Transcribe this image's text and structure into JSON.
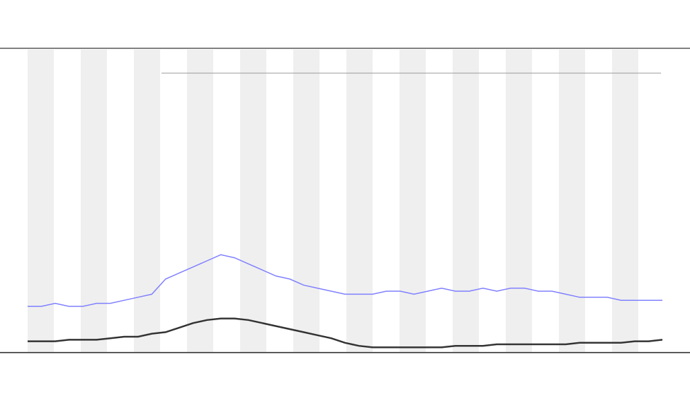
{
  "chart_data": {
    "type": "line",
    "categories": [
      null,
      null,
      null,
      null,
      null,
      null,
      null,
      null,
      null,
      null,
      null,
      null,
      null,
      null,
      null,
      null,
      null,
      null,
      null,
      null,
      null,
      null,
      null,
      null,
      null,
      null,
      null,
      null,
      null,
      null,
      null,
      null,
      null,
      null,
      null,
      null,
      null,
      null,
      null,
      null,
      null,
      null,
      null,
      null,
      null,
      null,
      null
    ],
    "ylim": [
      0,
      100
    ],
    "series": [
      {
        "color": "#7f7fff",
        "values": [
          15,
          15,
          16,
          15,
          15,
          16,
          16,
          17,
          18,
          19,
          24,
          26,
          28,
          30,
          32,
          31,
          29,
          27,
          25,
          24,
          22,
          21,
          20,
          19,
          19,
          19,
          20,
          20,
          19,
          20,
          21,
          20,
          20,
          21,
          20,
          21,
          21,
          20,
          20,
          19,
          18,
          18,
          18,
          17,
          17,
          17,
          17
        ]
      },
      {
        "color": "#333333",
        "values": [
          3.5,
          3.5,
          3.5,
          4,
          4,
          4,
          4.5,
          5,
          5,
          6,
          6.5,
          8,
          9.5,
          10.5,
          11,
          11,
          10.5,
          9.5,
          8.5,
          7.5,
          6.5,
          5.5,
          4.5,
          3,
          2,
          1.5,
          1.5,
          1.5,
          1.5,
          1.5,
          1.5,
          2,
          2,
          2,
          2.5,
          2.5,
          2.5,
          2.5,
          2.5,
          2.5,
          3,
          3,
          3,
          3,
          3.5,
          3.5,
          4
        ]
      }
    ]
  }
}
